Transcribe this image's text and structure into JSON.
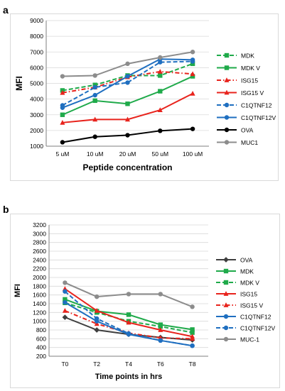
{
  "panels": {
    "a": "a",
    "b": "b"
  },
  "colors": {
    "green": "#1faa4a",
    "red": "#e8231c",
    "blue": "#1f6fc0",
    "black": "#000000",
    "gray": "#8c8c8c",
    "darkgray": "#3f3f3f",
    "grid": "#d9d9d9"
  },
  "chart_data": [
    {
      "type": "line",
      "panel": "a",
      "title": "",
      "xlabel": "Peptide concentration",
      "ylabel": "MFI",
      "ylim": [
        1000,
        9000
      ],
      "yticks": [
        1000,
        2000,
        3000,
        4000,
        5000,
        6000,
        7000,
        8000,
        9000
      ],
      "categories": [
        "5 uM",
        "10 uM",
        "20 uM",
        "50 uM",
        "100 uM"
      ],
      "grid": true,
      "legend_position": "right",
      "series": [
        {
          "name": "MDK",
          "color": "#1faa4a",
          "dash": "dashed",
          "marker": "square",
          "values": [
            4550,
            4900,
            5500,
            5500,
            6250
          ]
        },
        {
          "name": "MDK V",
          "color": "#1faa4a",
          "dash": "solid",
          "marker": "square",
          "values": [
            3000,
            3900,
            3700,
            4500,
            5450
          ]
        },
        {
          "name": "ISG15",
          "color": "#e8231c",
          "dash": "dashdot",
          "marker": "triangle",
          "values": [
            4400,
            4750,
            5400,
            5750,
            5600
          ]
        },
        {
          "name": "ISG15 V",
          "color": "#e8231c",
          "dash": "solid",
          "marker": "triangle",
          "values": [
            2500,
            2700,
            2700,
            3300,
            4350
          ]
        },
        {
          "name": "C1QTNF12",
          "color": "#1f6fc0",
          "dash": "dashed",
          "marker": "circle",
          "values": [
            3600,
            4750,
            5050,
            6350,
            6400
          ]
        },
        {
          "name": "C1QTNF12V",
          "color": "#1f6fc0",
          "dash": "solid",
          "marker": "circle",
          "values": [
            3450,
            4250,
            5450,
            6550,
            6500
          ]
        },
        {
          "name": "OVA",
          "color": "#000000",
          "dash": "solid",
          "marker": "circle",
          "values": [
            1250,
            1600,
            1700,
            1980,
            2100
          ]
        },
        {
          "name": "MUC1",
          "color": "#8c8c8c",
          "dash": "solid",
          "marker": "circle",
          "values": [
            5450,
            5500,
            6250,
            6650,
            7000
          ]
        }
      ]
    },
    {
      "type": "line",
      "panel": "b",
      "title": "",
      "xlabel": "Time points in hrs",
      "ylabel": "MFI",
      "ylim": [
        200,
        3200
      ],
      "yticks": [
        200,
        400,
        600,
        800,
        1000,
        1200,
        1400,
        1600,
        1800,
        2000,
        2200,
        2400,
        2600,
        2800,
        3000,
        3200
      ],
      "categories": [
        "T0",
        "T2",
        "T4",
        "T6",
        "T8"
      ],
      "grid": true,
      "legend_position": "right",
      "series": [
        {
          "name": "OVA",
          "color": "#3f3f3f",
          "dash": "solid",
          "marker": "diamond",
          "values": [
            1090,
            800,
            700,
            630,
            570
          ]
        },
        {
          "name": "MDK",
          "color": "#1faa4a",
          "dash": "solid",
          "marker": "square",
          "values": [
            1500,
            1230,
            1150,
            920,
            810
          ]
        },
        {
          "name": "MDK V",
          "color": "#1faa4a",
          "dash": "dashed",
          "marker": "square",
          "values": [
            1420,
            1200,
            1000,
            880,
            740
          ]
        },
        {
          "name": "ISG15",
          "color": "#e8231c",
          "dash": "solid",
          "marker": "triangle",
          "values": [
            1740,
            1240,
            970,
            800,
            650
          ]
        },
        {
          "name": "ISG15 V",
          "color": "#e8231c",
          "dash": "dashdot",
          "marker": "triangle",
          "values": [
            1240,
            940,
            730,
            620,
            600
          ]
        },
        {
          "name": "C1QTNF12",
          "color": "#1f6fc0",
          "dash": "solid",
          "marker": "circle",
          "values": [
            1430,
            1000,
            700,
            560,
            440
          ]
        },
        {
          "name": "C1QTNF12V",
          "color": "#1f6fc0",
          "dash": "dashed",
          "marker": "circle",
          "values": [
            1680,
            1060,
            720,
            560,
            440
          ]
        },
        {
          "name": "MUC-1",
          "color": "#8c8c8c",
          "dash": "solid",
          "marker": "circle",
          "values": [
            1880,
            1560,
            1620,
            1620,
            1330
          ]
        }
      ]
    }
  ]
}
